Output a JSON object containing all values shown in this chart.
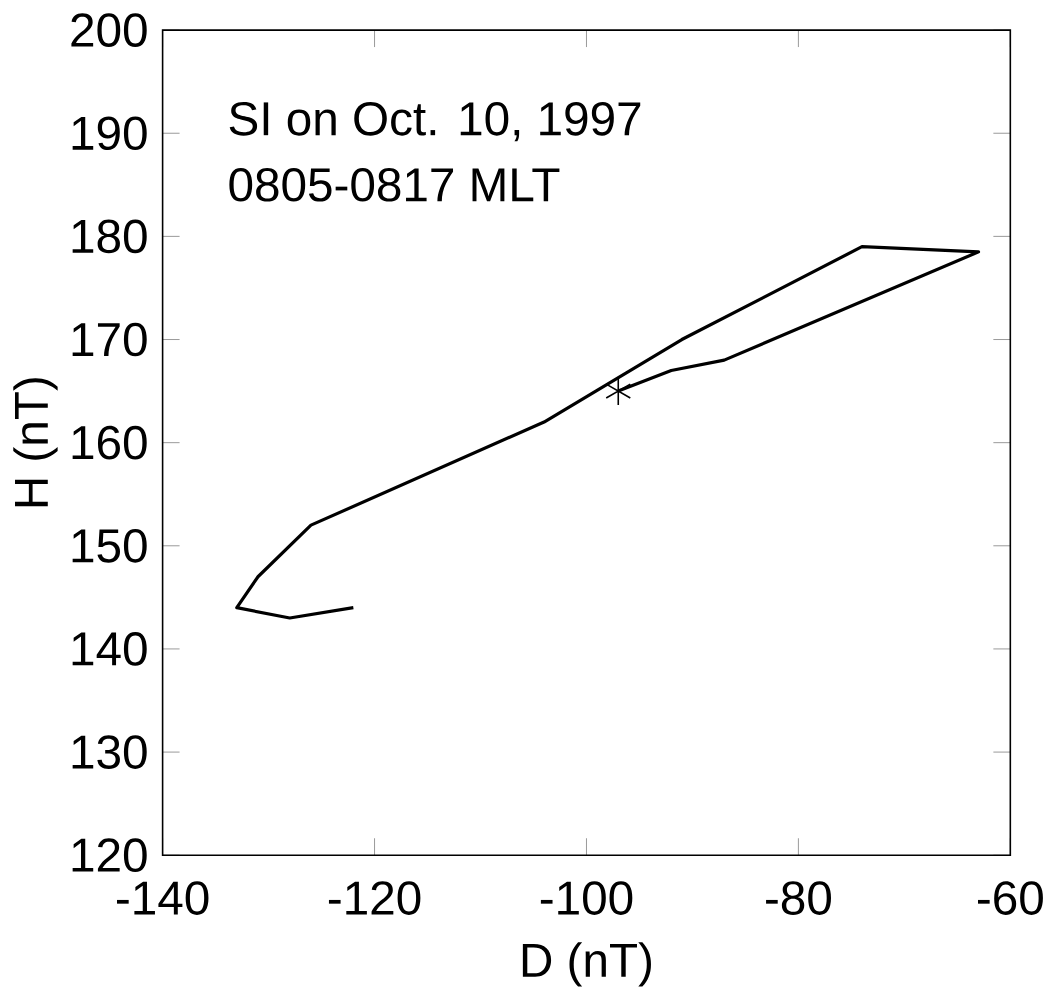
{
  "chart_data": {
    "type": "line",
    "xlabel": "D (nT)",
    "ylabel": "H (nT)",
    "annotations": [
      "SI on Oct. 10, 1997",
      "0805-0817 MLT"
    ],
    "xlim": [
      -140,
      -60
    ],
    "ylim": [
      120,
      200
    ],
    "xticks": [
      -140,
      -120,
      -100,
      -80,
      -60
    ],
    "yticks": [
      120,
      130,
      140,
      150,
      160,
      170,
      180,
      190,
      200
    ],
    "series": [
      {
        "color": "#000000",
        "x": [
          -97,
          -92,
          -87,
          -63,
          -74,
          -91,
          -104,
          -126,
          -131,
          -133,
          -128,
          -122
        ],
        "values": [
          165,
          167,
          168,
          178.5,
          179,
          170,
          162,
          152,
          147,
          144,
          143,
          144
        ]
      },
      {
        "type": "scatter",
        "color": "#000000",
        "marker": "cross",
        "x": [
          -97
        ],
        "values": [
          165
        ]
      }
    ]
  }
}
